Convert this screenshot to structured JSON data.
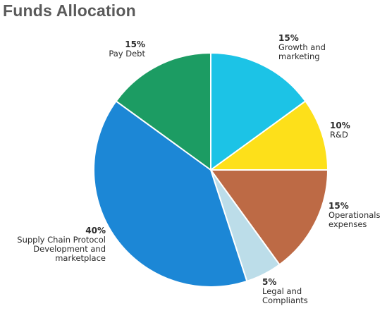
{
  "chart_data": {
    "type": "pie",
    "title": "Funds Allocation",
    "slices": [
      {
        "label": [
          "Growth and",
          "marketing"
        ],
        "value": 15,
        "value_label": "15%",
        "color": "#1cc3e6"
      },
      {
        "label": [
          "R&D"
        ],
        "value": 10,
        "value_label": "10%",
        "color": "#fde01a"
      },
      {
        "label": [
          "Operationals",
          "expenses"
        ],
        "value": 15,
        "value_label": "15%",
        "color": "#bd6a45"
      },
      {
        "label": [
          "Legal and",
          "Compliants"
        ],
        "value": 5,
        "value_label": "5%",
        "color": "#bcdde9"
      },
      {
        "label": [
          "Supply Chain Protocol",
          "Development and",
          "marketplace"
        ],
        "value": 40,
        "value_label": "40%",
        "color": "#1c87d6"
      },
      {
        "label": [
          "Pay Debt"
        ],
        "value": 15,
        "value_label": "15%",
        "color": "#1c9c63"
      }
    ]
  }
}
